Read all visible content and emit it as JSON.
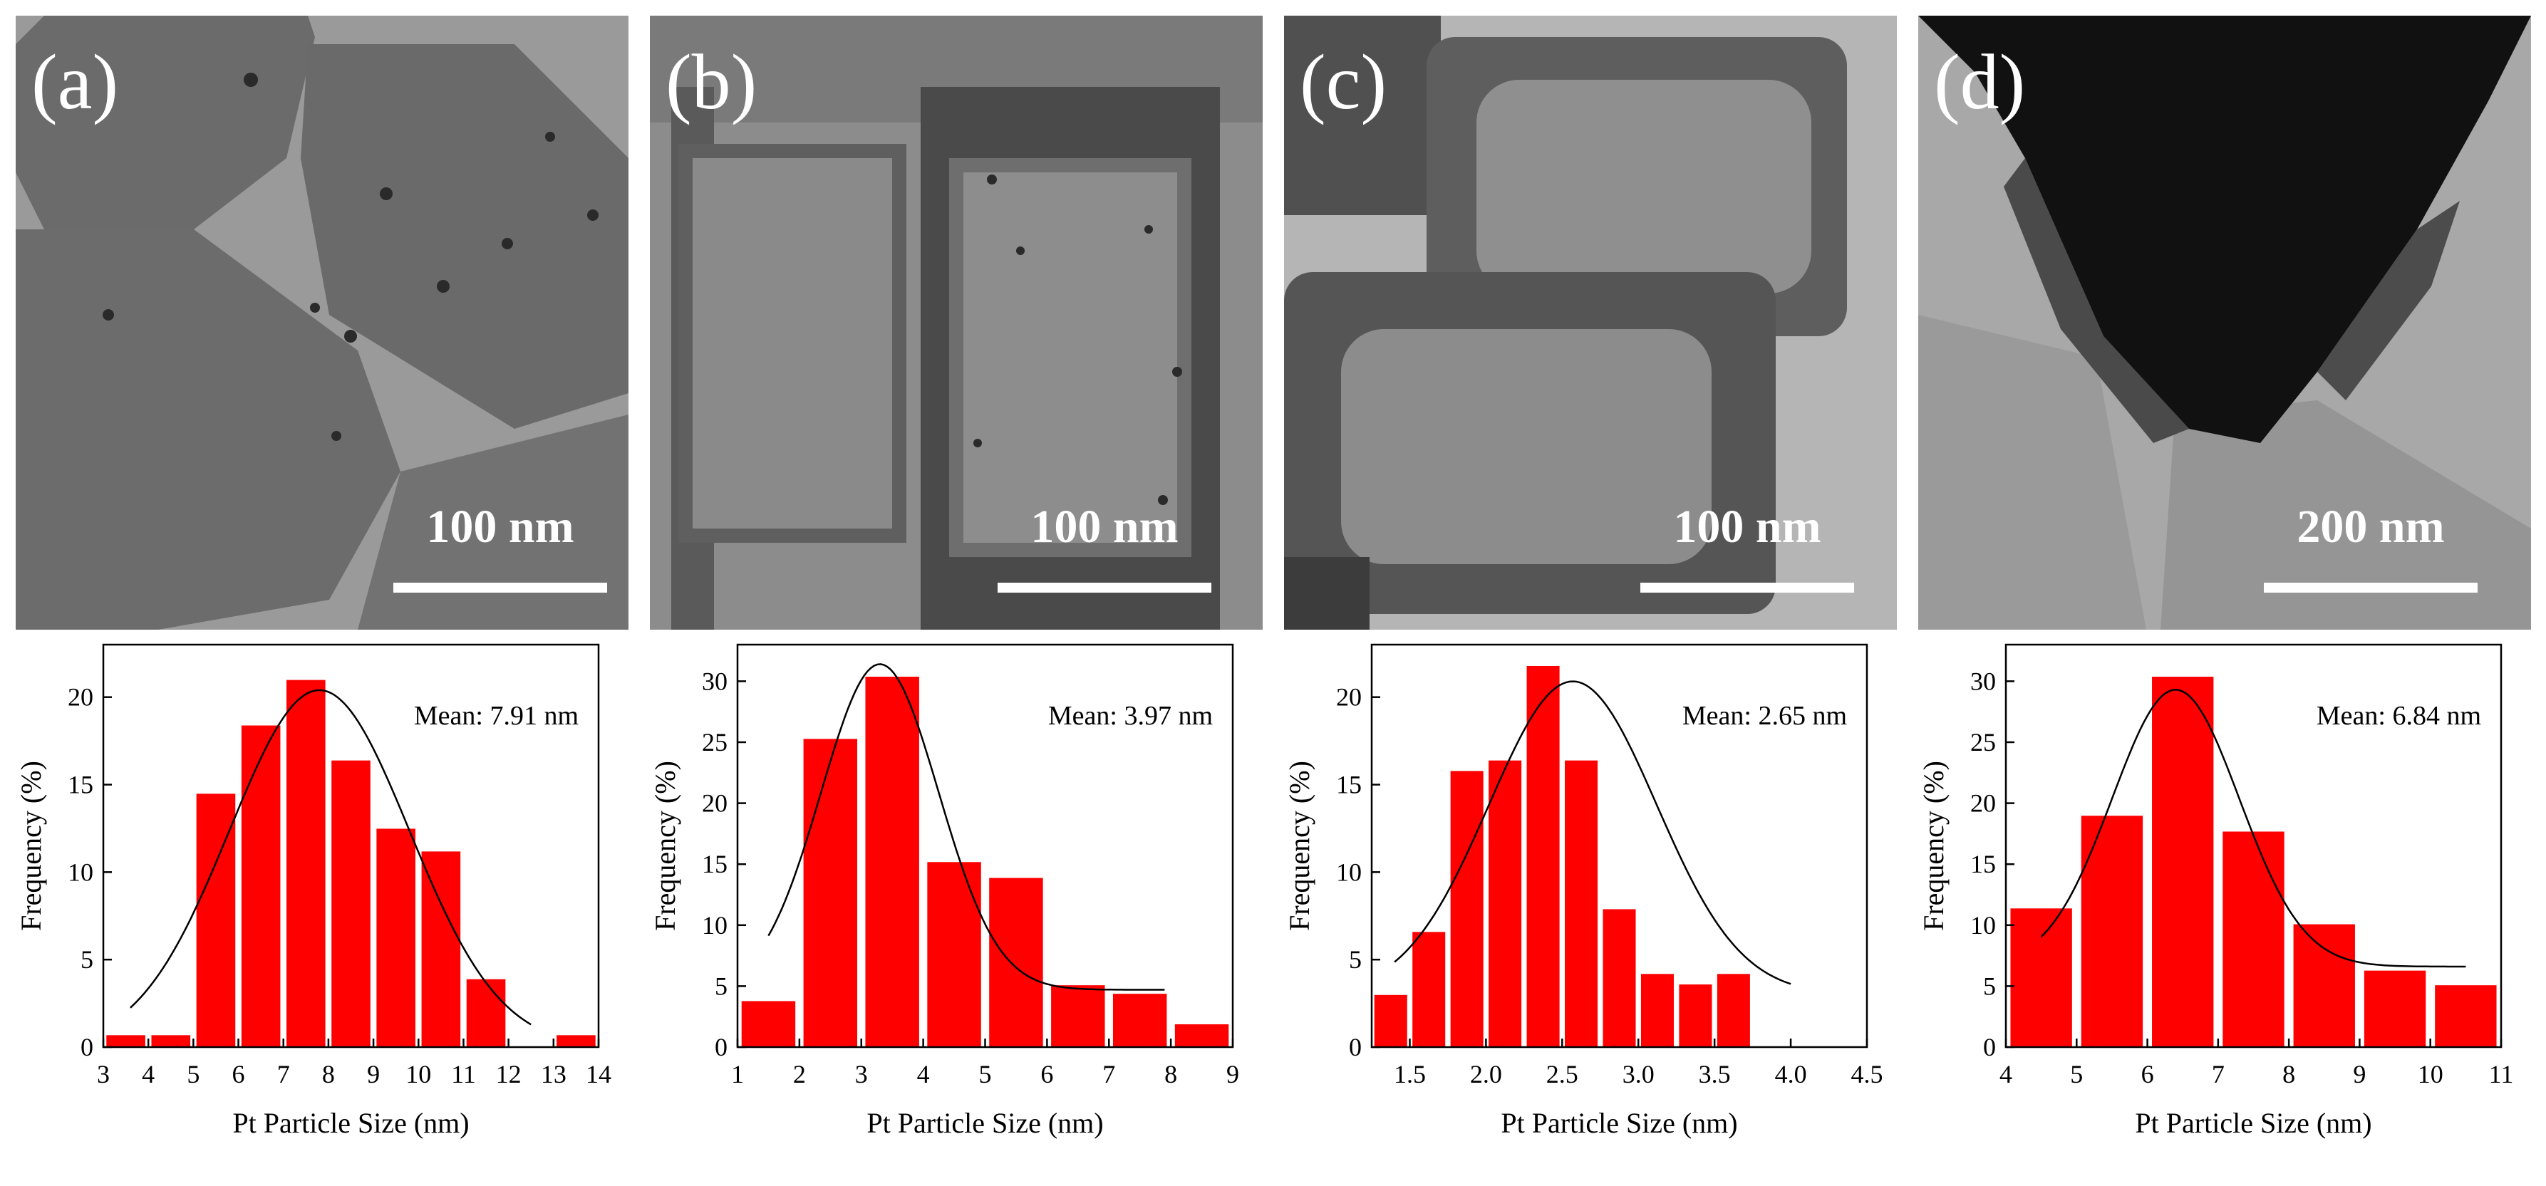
{
  "panels": [
    {
      "letter": "(a)",
      "scale_label": "100 nm"
    },
    {
      "letter": "(b)",
      "scale_label": "100 nm"
    },
    {
      "letter": "(c)",
      "scale_label": "100 nm"
    },
    {
      "letter": "(d)",
      "scale_label": "200 nm"
    }
  ],
  "colors": {
    "bar": "#ff0000",
    "fit_line": "#000000",
    "scale_bar": "#ffffff"
  },
  "chart_data": [
    {
      "type": "bar",
      "xlabel": "Pt Particle Size (nm)",
      "ylabel": "Frequency (%)",
      "annotation": "Mean: 7.91 nm",
      "xlim": [
        3,
        14
      ],
      "ylim": [
        0,
        23
      ],
      "xticks": [
        3,
        4,
        5,
        6,
        7,
        8,
        9,
        10,
        11,
        12,
        13,
        14
      ],
      "xtick_labels": [
        "3",
        "4",
        "5",
        "6",
        "7",
        "8",
        "9",
        "10",
        "11",
        "12",
        "13",
        "14"
      ],
      "yticks": [
        0,
        5,
        10,
        15,
        20
      ],
      "bin_width": 1,
      "bins": [
        3.5,
        4.5,
        5.5,
        6.5,
        7.5,
        8.5,
        9.5,
        10.5,
        11.5,
        12.5,
        13.5
      ],
      "values": [
        0.7,
        0.7,
        14.5,
        18.4,
        21.0,
        16.4,
        12.5,
        11.2,
        3.9,
        0,
        0.7
      ],
      "fit": {
        "type": "gaussian",
        "center": 7.8,
        "sigma": 2.0,
        "amplitude": 20.4,
        "offset": 0,
        "range": [
          3.6,
          12.5
        ]
      }
    },
    {
      "type": "bar",
      "xlabel": "Pt Particle Size (nm)",
      "ylabel": "Frequency (%)",
      "annotation": "Mean: 3.97 nm",
      "xlim": [
        1,
        9
      ],
      "ylim": [
        0,
        33
      ],
      "xticks": [
        1,
        2,
        3,
        4,
        5,
        6,
        7,
        8,
        9
      ],
      "xtick_labels": [
        "1",
        "2",
        "3",
        "4",
        "5",
        "6",
        "7",
        "8",
        "9"
      ],
      "yticks": [
        0,
        5,
        10,
        15,
        20,
        25,
        30
      ],
      "bin_width": 1,
      "bins": [
        1.5,
        2.5,
        3.5,
        4.5,
        5.5,
        6.5,
        7.5,
        8.5
      ],
      "values": [
        3.8,
        25.3,
        30.4,
        15.2,
        13.9,
        5.1,
        4.4,
        1.9
      ],
      "fit": {
        "type": "gaussian",
        "center": 3.3,
        "sigma": 0.95,
        "amplitude": 26.7,
        "offset": 4.7,
        "range": [
          1.5,
          7.9
        ]
      }
    },
    {
      "type": "bar",
      "xlabel": "Pt Particle Size (nm)",
      "ylabel": "Frequency (%)",
      "annotation": "Mean: 2.65 nm",
      "xlim": [
        1.25,
        4.5
      ],
      "ylim": [
        0,
        23
      ],
      "xticks": [
        1.5,
        2.0,
        2.5,
        3.0,
        3.5,
        4.0,
        4.5
      ],
      "xtick_labels": [
        "1.5",
        "2.0",
        "2.5",
        "3.0",
        "3.5",
        "4.0",
        "4.5"
      ],
      "yticks": [
        0,
        5,
        10,
        15,
        20
      ],
      "bin_width": 0.25,
      "bins": [
        1.375,
        1.625,
        1.875,
        2.125,
        2.375,
        2.625,
        2.875,
        3.125,
        3.375,
        3.625,
        3.875,
        4.125
      ],
      "values": [
        3.0,
        6.6,
        15.8,
        16.4,
        21.8,
        16.4,
        7.9,
        4.2,
        3.6,
        4.2,
        0,
        0
      ],
      "fit": {
        "type": "gaussian",
        "center": 2.57,
        "sigma": 0.55,
        "amplitude": 17.9,
        "offset": 3.0,
        "range": [
          1.4,
          4.0
        ]
      }
    },
    {
      "type": "bar",
      "xlabel": "Pt Particle Size (nm)",
      "ylabel": "Frequency (%)",
      "annotation": "Mean: 6.84 nm",
      "xlim": [
        4,
        11
      ],
      "ylim": [
        0,
        33
      ],
      "xticks": [
        4,
        5,
        6,
        7,
        8,
        9,
        10,
        11
      ],
      "xtick_labels": [
        "4",
        "5",
        "6",
        "7",
        "8",
        "9",
        "10",
        "11"
      ],
      "yticks": [
        0,
        5,
        10,
        15,
        20,
        25,
        30
      ],
      "bin_width": 1,
      "bins": [
        4.5,
        5.5,
        6.5,
        7.5,
        8.5,
        9.5,
        10.5
      ],
      "values": [
        11.4,
        19.0,
        30.4,
        17.7,
        10.1,
        6.3,
        5.1
      ],
      "fit": {
        "type": "gaussian",
        "center": 6.4,
        "sigma": 0.9,
        "amplitude": 22.7,
        "offset": 6.6,
        "range": [
          4.5,
          10.5
        ]
      }
    }
  ]
}
